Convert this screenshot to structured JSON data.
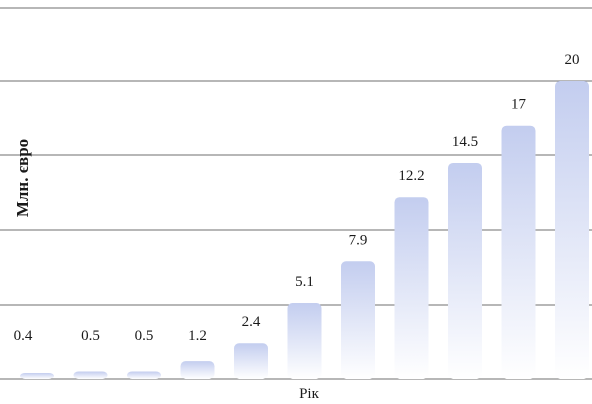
{
  "chart_data": {
    "type": "bar",
    "title": "",
    "ylabel": "Млн. євро",
    "xlabel": "Рік",
    "ylim": [
      0,
      20
    ],
    "grid": true,
    "categories": [
      "",
      "",
      "",
      "",
      "",
      "",
      "",
      "",
      "",
      "",
      ""
    ],
    "values": [
      0.4,
      0.5,
      0.5,
      1.2,
      2.4,
      5.1,
      7.9,
      12.2,
      14.5,
      17,
      20
    ],
    "labels": [
      "0.4",
      "0.5",
      "0.5",
      "1.2",
      "2.4",
      "5.1",
      "7.9",
      "12.2",
      "14.5",
      "17",
      "20"
    ],
    "colors": {
      "bar_top": "#c3cdef",
      "bar_bottom": "#ffffff",
      "grid": "#6f6f6f"
    }
  }
}
